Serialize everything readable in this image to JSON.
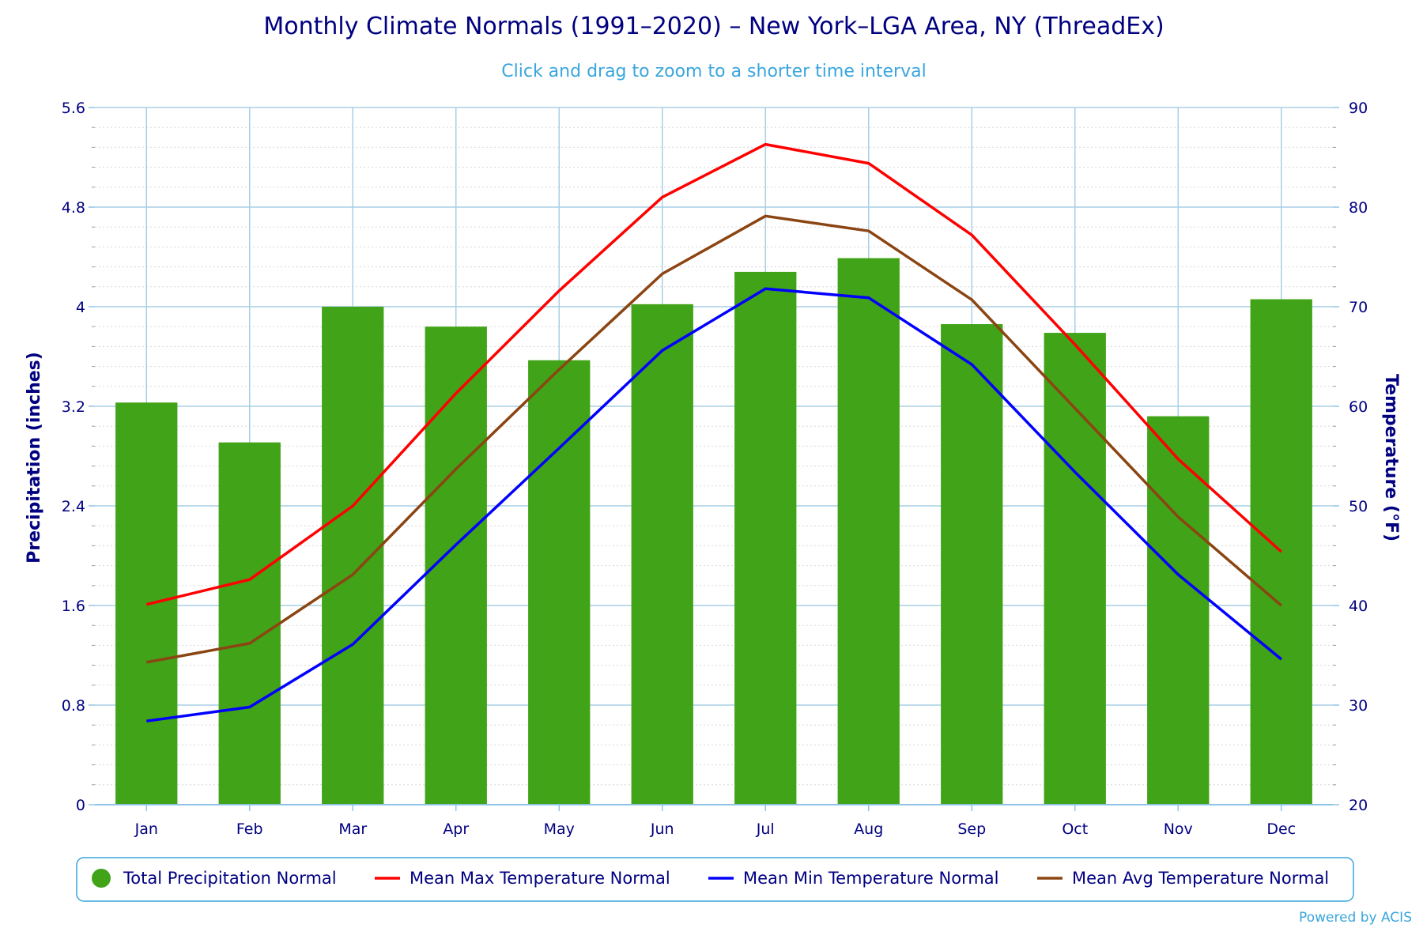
{
  "chart_data": {
    "type": "bar",
    "title": "Monthly Climate Normals (1991–2020) – New York–LGA Area, NY (ThreadEx)",
    "subtitle": "Click and drag to zoom to a shorter time interval",
    "credit": "Powered by ACIS",
    "categories": [
      "Jan",
      "Feb",
      "Mar",
      "Apr",
      "May",
      "Jun",
      "Jul",
      "Aug",
      "Sep",
      "Oct",
      "Nov",
      "Dec"
    ],
    "y_left": {
      "label": "Precipitation (inches)",
      "lim": [
        0,
        5.6
      ],
      "ticks": [
        "0",
        "0.8",
        "1.6",
        "2.4",
        "3.2",
        "4",
        "4.8",
        "5.6"
      ]
    },
    "y_right": {
      "label": "Temperature (°F)",
      "lim": [
        20,
        90
      ],
      "ticks": [
        "20",
        "30",
        "40",
        "50",
        "60",
        "70",
        "80",
        "90"
      ]
    },
    "series": [
      {
        "name": "Total Precipitation Normal",
        "type": "bar",
        "axis": "left",
        "color": "#41a317",
        "values": [
          3.23,
          2.91,
          4.0,
          3.84,
          3.57,
          4.02,
          4.28,
          4.39,
          3.86,
          3.79,
          3.12,
          4.06
        ]
      },
      {
        "name": "Mean Max Temperature Normal",
        "type": "line",
        "axis": "right",
        "color": "#ff0000",
        "values": [
          40.1,
          42.6,
          50.0,
          61.3,
          71.6,
          81.0,
          86.3,
          84.4,
          77.2,
          66.2,
          54.7,
          45.4
        ]
      },
      {
        "name": "Mean Min Temperature Normal",
        "type": "line",
        "axis": "right",
        "color": "#0000ff",
        "values": [
          28.4,
          29.8,
          36.1,
          46.1,
          55.8,
          65.6,
          71.8,
          70.9,
          64.2,
          53.4,
          43.1,
          34.6
        ]
      },
      {
        "name": "Mean Avg Temperature Normal",
        "type": "line",
        "axis": "right",
        "color": "#8b4513",
        "values": [
          34.3,
          36.2,
          43.1,
          53.7,
          63.7,
          73.3,
          79.1,
          77.6,
          70.7,
          59.8,
          48.9,
          40.0
        ]
      }
    ],
    "grid": true,
    "legend_position": "bottom"
  }
}
